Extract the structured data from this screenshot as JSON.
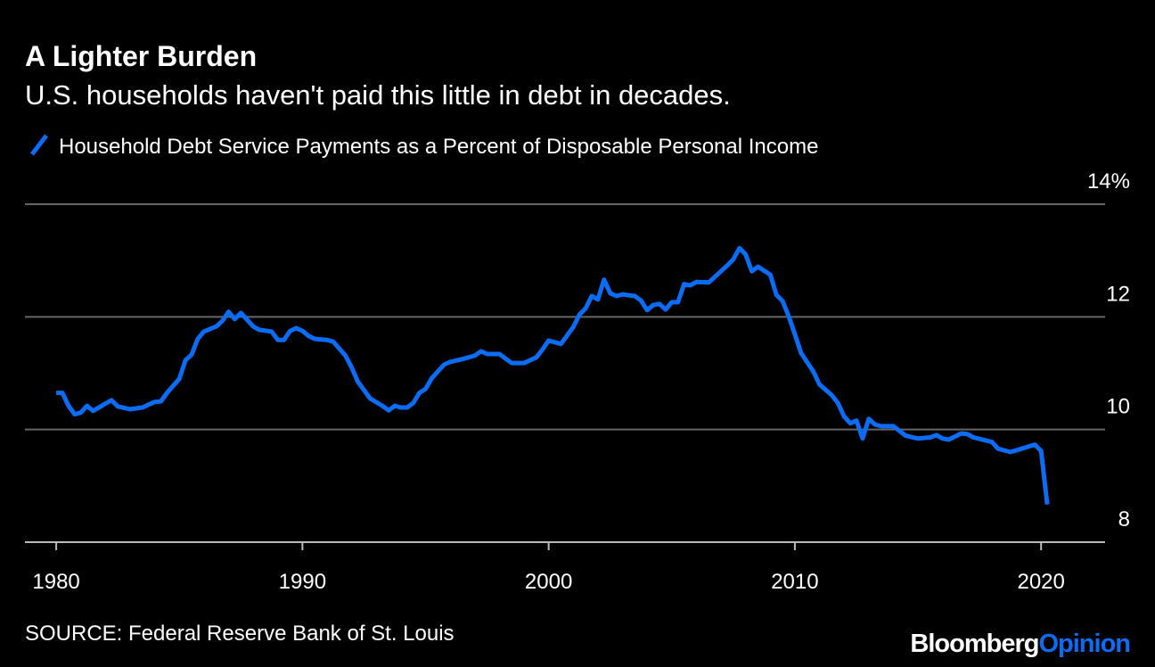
{
  "chart_data": {
    "type": "line",
    "title": "A Lighter Burden",
    "subtitle": "U.S. households haven't paid this little in debt in decades.",
    "source": "SOURCE: Federal Reserve Bank of St. Louis",
    "brand": [
      "Bloomberg",
      "Opinion"
    ],
    "x": [
      1980.0,
      1980.25,
      1980.5,
      1980.75,
      1981.0,
      1981.25,
      1981.5,
      1982.0,
      1982.25,
      1982.5,
      1983.0,
      1983.5,
      1984.0,
      1984.25,
      1984.5,
      1985.0,
      1985.25,
      1985.5,
      1985.75,
      1986.0,
      1986.5,
      1986.75,
      1987.0,
      1987.25,
      1987.5,
      1988.0,
      1988.25,
      1988.75,
      1989.0,
      1989.25,
      1989.5,
      1989.75,
      1990.0,
      1990.25,
      1990.5,
      1991.0,
      1991.25,
      1991.75,
      1992.0,
      1992.25,
      1992.75,
      1993.25,
      1993.5,
      1993.75,
      1994.0,
      1994.25,
      1994.5,
      1994.75,
      1995.0,
      1995.25,
      1995.75,
      1996.0,
      1996.5,
      1997.0,
      1997.25,
      1997.5,
      1998.0,
      1998.25,
      1998.5,
      1999.0,
      1999.5,
      1999.75,
      2000.0,
      2000.5,
      2001.0,
      2001.25,
      2001.5,
      2001.75,
      2002.0,
      2002.25,
      2002.5,
      2002.75,
      2003.0,
      2003.5,
      2003.75,
      2004.0,
      2004.25,
      2004.5,
      2004.75,
      2005.0,
      2005.25,
      2005.5,
      2005.75,
      2006.0,
      2006.5,
      2007.0,
      2007.25,
      2007.5,
      2007.75,
      2008.0,
      2008.25,
      2008.5,
      2009.0,
      2009.25,
      2009.5,
      2009.75,
      2010.0,
      2010.25,
      2010.75,
      2011.0,
      2011.5,
      2011.75,
      2012.0,
      2012.25,
      2012.5,
      2012.75,
      2013.0,
      2013.25,
      2013.5,
      2014.0,
      2014.5,
      2015.0,
      2015.5,
      2015.75,
      2016.0,
      2016.25,
      2016.75,
      2017.0,
      2017.25,
      2018.0,
      2018.25,
      2018.75,
      2019.0,
      2019.5,
      2019.75,
      2020.0,
      2020.25
    ],
    "series": [
      {
        "name": "Household Debt Service Payments as a Percent of Disposable Personal Income",
        "color": "#0b6cf6",
        "values": [
          10.65,
          10.65,
          10.42,
          10.27,
          10.3,
          10.42,
          10.33,
          10.46,
          10.52,
          10.41,
          10.36,
          10.39,
          10.49,
          10.5,
          10.65,
          10.9,
          11.23,
          11.33,
          11.61,
          11.74,
          11.83,
          11.93,
          12.09,
          11.96,
          12.07,
          11.83,
          11.77,
          11.74,
          11.59,
          11.59,
          11.75,
          11.8,
          11.75,
          11.66,
          11.61,
          11.59,
          11.56,
          11.31,
          11.1,
          10.85,
          10.55,
          10.42,
          10.34,
          10.42,
          10.39,
          10.39,
          10.47,
          10.65,
          10.72,
          10.91,
          11.15,
          11.2,
          11.25,
          11.31,
          11.39,
          11.34,
          11.34,
          11.26,
          11.18,
          11.18,
          11.28,
          11.42,
          11.58,
          11.52,
          11.82,
          12.04,
          12.15,
          12.37,
          12.31,
          12.66,
          12.42,
          12.37,
          12.4,
          12.37,
          12.29,
          12.12,
          12.21,
          12.23,
          12.13,
          12.26,
          12.26,
          12.58,
          12.56,
          12.62,
          12.61,
          12.81,
          12.91,
          13.02,
          13.22,
          13.11,
          12.81,
          12.89,
          12.75,
          12.39,
          12.28,
          12.01,
          11.69,
          11.36,
          11.03,
          10.8,
          10.61,
          10.47,
          10.23,
          10.11,
          10.16,
          9.84,
          10.19,
          10.09,
          10.06,
          10.06,
          9.89,
          9.84,
          9.86,
          9.9,
          9.84,
          9.82,
          9.93,
          9.92,
          9.86,
          9.78,
          9.66,
          9.6,
          9.63,
          9.7,
          9.73,
          9.62,
          8.67
        ]
      }
    ],
    "xlim": [
      1978.73,
      2022.6
    ],
    "xticks": [
      1980,
      1990,
      2000,
      2010,
      2020
    ],
    "ylim": [
      8,
      14
    ],
    "yticks": [
      8,
      10,
      12,
      {
        "value": 14,
        "label": "14%"
      }
    ],
    "grid": true
  }
}
